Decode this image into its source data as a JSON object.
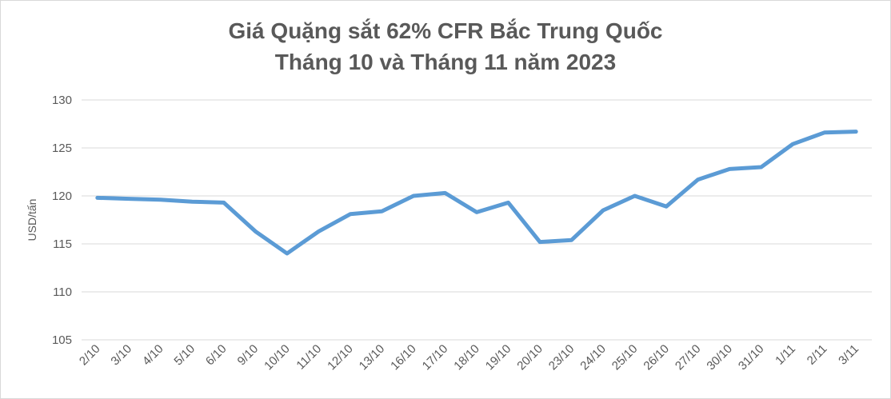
{
  "chart_data": {
    "type": "line",
    "title": [
      "Giá Quặng sắt 62% CFR Bắc Trung Quốc",
      "Tháng 10 và Tháng 11 năm 2023"
    ],
    "xlabel": "",
    "ylabel": "USD/tấn",
    "ylim": [
      105,
      130
    ],
    "yticks": [
      105,
      110,
      115,
      120,
      125,
      130
    ],
    "grid": true,
    "legend": "none",
    "line_color": "#5b9bd5",
    "categories": [
      "2/10",
      "3/10",
      "4/10",
      "5/10",
      "6/10",
      "9/10",
      "10/10",
      "11/10",
      "12/10",
      "13/10",
      "16/10",
      "17/10",
      "18/10",
      "19/10",
      "20/10",
      "23/10",
      "24/10",
      "25/10",
      "26/10",
      "27/10",
      "30/10",
      "31/10",
      "1/11",
      "2/11",
      "3/11"
    ],
    "series": [
      {
        "values": [
          119.8,
          119.7,
          119.6,
          119.4,
          119.3,
          116.3,
          114.0,
          116.3,
          118.1,
          118.4,
          120.0,
          120.3,
          118.3,
          119.3,
          115.2,
          115.4,
          118.5,
          120.0,
          118.9,
          121.7,
          122.8,
          123.0,
          125.4,
          126.6,
          126.7
        ]
      }
    ]
  }
}
